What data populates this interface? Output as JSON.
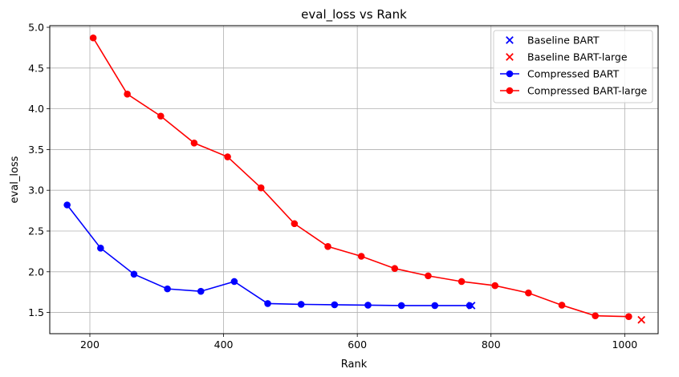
{
  "chart_data": {
    "type": "line",
    "title": "eval_loss vs Rank",
    "xlabel": "Rank",
    "ylabel": "eval_loss",
    "xlim": [
      140,
      1050
    ],
    "ylim": [
      1.24,
      5.02
    ],
    "xticks": [
      200,
      400,
      600,
      800,
      1000
    ],
    "yticks": [
      1.5,
      2.0,
      2.5,
      3.0,
      3.5,
      4.0,
      4.5,
      5.0
    ],
    "xtick_labels": [
      "200",
      "400",
      "600",
      "800",
      "1000"
    ],
    "ytick_labels": [
      "1.5",
      "2.0",
      "2.5",
      "3.0",
      "3.5",
      "4.0",
      "4.5",
      "5.0"
    ],
    "grid": true,
    "legend_position": "top-right",
    "series": [
      {
        "name": "Compressed BART",
        "kind": "line",
        "color": "#0000ff",
        "marker": "circle",
        "x": [
          166,
          216,
          266,
          316,
          366,
          416,
          466,
          516,
          566,
          616,
          666,
          716,
          768
        ],
        "y": [
          2.82,
          2.29,
          1.97,
          1.79,
          1.76,
          1.88,
          1.61,
          1.6,
          1.595,
          1.59,
          1.585,
          1.585,
          1.585
        ]
      },
      {
        "name": "Compressed BART-large",
        "kind": "line",
        "color": "#ff0000",
        "marker": "circle",
        "x": [
          205,
          256,
          306,
          356,
          406,
          456,
          506,
          556,
          606,
          656,
          706,
          756,
          806,
          856,
          906,
          956,
          1006
        ],
        "y": [
          4.87,
          4.18,
          3.91,
          3.58,
          3.41,
          3.03,
          2.59,
          2.31,
          2.19,
          2.04,
          1.95,
          1.88,
          1.83,
          1.74,
          1.59,
          1.46,
          1.45
        ]
      },
      {
        "name": "Baseline BART",
        "kind": "scatter",
        "color": "#0000ff",
        "marker": "x",
        "x": [
          771
        ],
        "y": [
          1.585
        ]
      },
      {
        "name": "Baseline BART-large",
        "kind": "scatter",
        "color": "#ff0000",
        "marker": "x",
        "x": [
          1025
        ],
        "y": [
          1.41
        ]
      }
    ],
    "legend_order": [
      "Baseline BART",
      "Baseline BART-large",
      "Compressed BART",
      "Compressed BART-large"
    ]
  }
}
